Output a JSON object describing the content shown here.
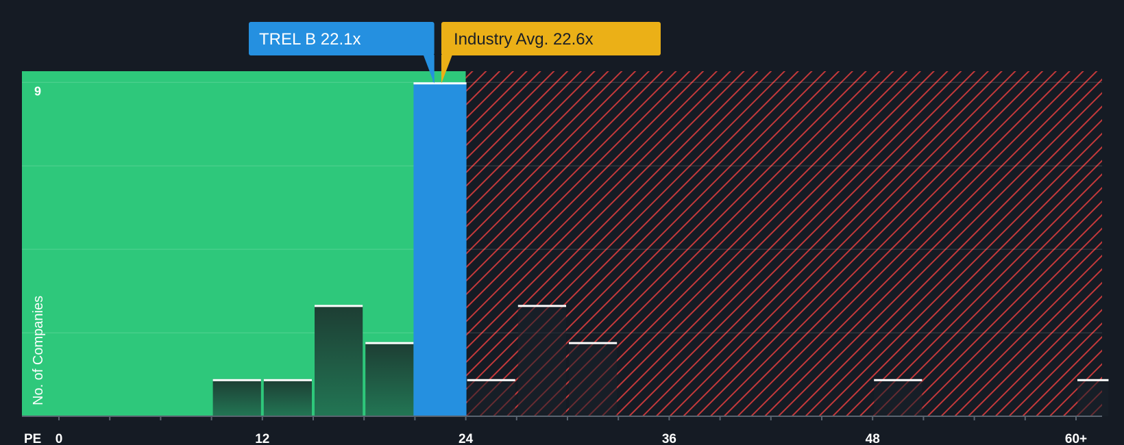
{
  "chart_data": {
    "type": "bar",
    "x_axis_label": "PE",
    "x_ticks": [
      {
        "value": 0,
        "label": "0"
      },
      {
        "value": 12,
        "label": "12"
      },
      {
        "value": 24,
        "label": "24"
      },
      {
        "value": 36,
        "label": "36"
      },
      {
        "value": 48,
        "label": "48"
      },
      {
        "value": 60,
        "label": "60+"
      }
    ],
    "xlim": [
      -2,
      62
    ],
    "ylabel": "No. of Companies",
    "y_ticks": [
      {
        "value": 9,
        "label": "9"
      }
    ],
    "ylim": [
      0,
      9.3
    ],
    "bin_width": 3,
    "bins": [
      {
        "x0": 9,
        "x1": 12,
        "count": 1
      },
      {
        "x0": 12,
        "x1": 15,
        "count": 1
      },
      {
        "x0": 15,
        "x1": 18,
        "count": 3
      },
      {
        "x0": 18,
        "x1": 21,
        "count": 2
      },
      {
        "x0": 21,
        "x1": 24,
        "count": 9,
        "highlight": true
      },
      {
        "x0": 24,
        "x1": 27,
        "count": 1
      },
      {
        "x0": 27,
        "x1": 30,
        "count": 3
      },
      {
        "x0": 30,
        "x1": 33,
        "count": 2
      },
      {
        "x0": 48,
        "x1": 51,
        "count": 1
      },
      {
        "x0": 60,
        "x1": 62,
        "count": 1
      }
    ],
    "company": {
      "label": "TREL B 22.1x",
      "value": 22.1
    },
    "industry_avg": {
      "label": "Industry Avg. 22.6x",
      "value": 22.6
    },
    "undervalued_region_until": 24,
    "grid": true,
    "colors": {
      "background": "#151b24",
      "undervalued": "#2ec87b",
      "overvalued_hatch": "#c4393b",
      "company": "#2590e0",
      "industry": "#ebb017",
      "bar_fill_dark": "#1e3b33",
      "bar_outline": "#ffffff",
      "text": "#ffffff"
    }
  }
}
